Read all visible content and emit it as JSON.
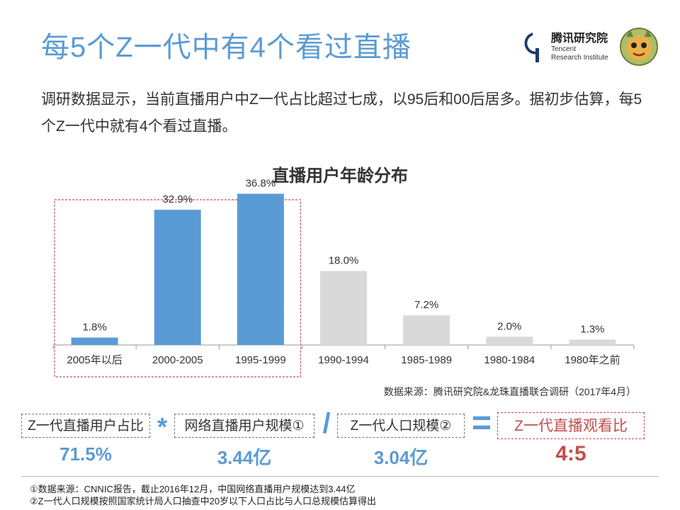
{
  "header": {
    "title": "每5个Z一代中有4个看过直播",
    "brand_name": "腾讯研究院",
    "brand_en_line1": "Tencent",
    "brand_en_line2": "Research Institute",
    "logo_icon": "tencent-research-logo-icon",
    "mascot_icon": "mascot-icon"
  },
  "intro_text": "调研数据显示，当前直播用户中Z一代占比超过七成，以95后和00后居多。据初步估算，每5个Z一代中就有4个看过直播。",
  "chart_data": {
    "type": "bar",
    "title": "直播用户年龄分布",
    "categories": [
      "2005年以后",
      "2000-2005",
      "1995-1999",
      "1990-1994",
      "1985-1989",
      "1980-1984",
      "1980年之前"
    ],
    "values": [
      1.8,
      32.9,
      36.8,
      18.0,
      7.2,
      2.0,
      1.3
    ],
    "value_labels": [
      "1.8%",
      "32.9%",
      "36.8%",
      "18.0%",
      "7.2%",
      "2.0%",
      "1.3%"
    ],
    "highlight_indices": [
      0,
      1,
      2
    ],
    "colors": {
      "highlight": "#5b9bd5",
      "other": "#d9d9d9",
      "highlight_frame": "#c0504d",
      "axis": "#999999"
    },
    "ylim": [
      0,
      40
    ],
    "grid": false,
    "xlabel": "",
    "ylabel": ""
  },
  "source_note": "数据来源：腾讯研究院&龙珠直播联合调研（2017年4月）",
  "formula": {
    "term1_label": "Z一代直播用户占比",
    "op1": "*",
    "term2_label": "网络直播用户规模①",
    "op2": "/",
    "term3_label": "Z一代人口规模②",
    "op3": "=",
    "result_label": "Z一代直播观看比",
    "term1_value": "71.5%",
    "term2_value": "3.44亿",
    "term3_value": "3.04亿",
    "result_value": "4:5"
  },
  "footnotes": [
    "①数据来源：CNNIC报告，截止2016年12月，中国网络直播用户规模达到3.44亿",
    "②Z一代人口规模按照国家统计局人口抽查中20岁以下人口占比与人口总规模估算得出"
  ]
}
